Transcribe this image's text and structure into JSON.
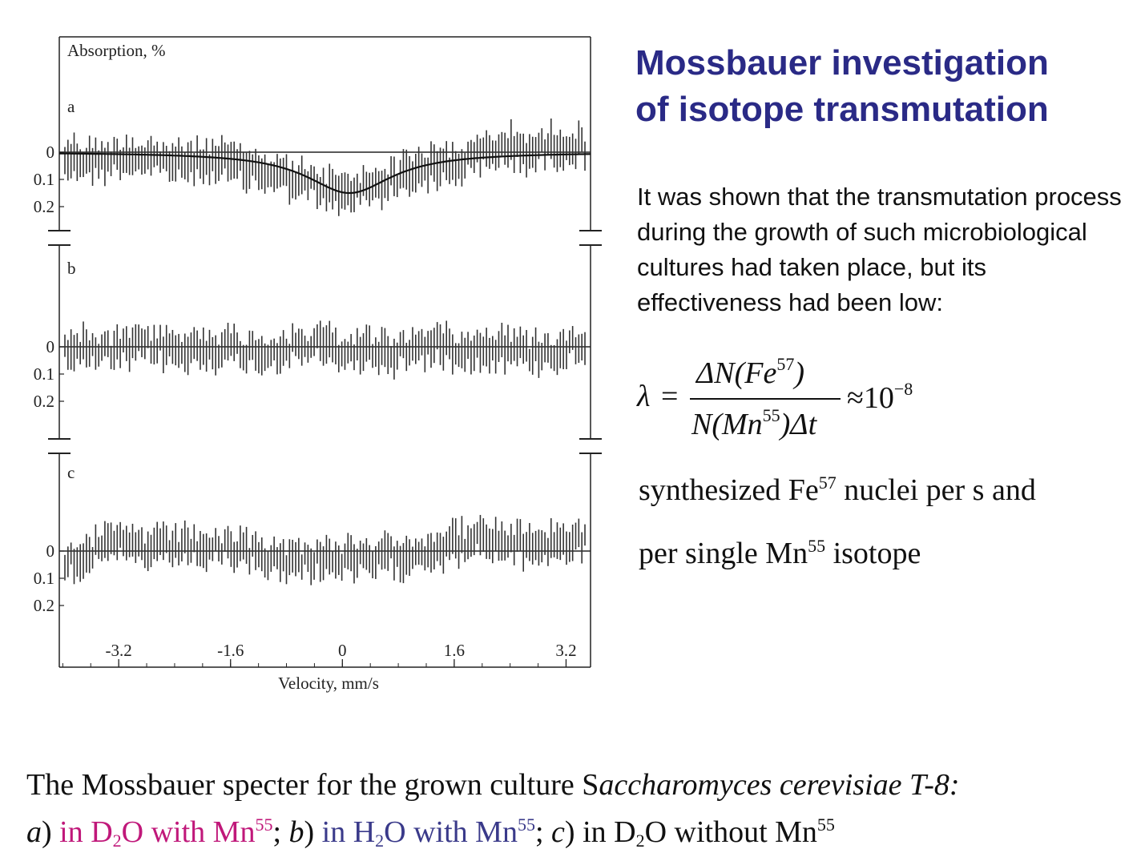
{
  "slide": {
    "title_line1": "Mossbauer investigation",
    "title_line2": "of isotope transmutation",
    "paragraph": "It  was shown that the transmutation process during the growth of such microbiological cultures had taken place, but its effectiveness had been low:",
    "formula": {
      "lambda": "λ",
      "equals": "=",
      "num_pre": "ΔN(Fe",
      "num_sup": "57",
      "num_post": ")",
      "den_pre": "N(Mn",
      "den_sup": "55",
      "den_post": ")Δt",
      "approx": "≈10",
      "approx_sup": "−8"
    },
    "desc_line1_pre": "synthesized Fe",
    "desc_line1_sup": "57",
    "desc_line1_post": " nuclei per s and",
    "desc_line2_pre": "per single Mn",
    "desc_line2_sup": "55",
    "desc_line2_post": " isotope",
    "caption": {
      "line1_pre": "The Mossbauer specter for the grown culture S",
      "line1_ital": "accharomyces cerevisiae T-8:",
      "a_letter": "a",
      "a_paren": ") ",
      "a_text_pre": "in D",
      "a_sub": "2",
      "a_text_mid": "O with Mn",
      "a_sup": "55",
      "a_sep": "; ",
      "b_letter": "b",
      "b_paren": ") ",
      "b_text_pre": "in H",
      "b_sub": "2",
      "b_text_mid": "O with Mn",
      "b_sup": "55",
      "b_sep": "; ",
      "c_letter": "c",
      "c_paren": ") ",
      "c_text_pre": "in D",
      "c_sub": "2",
      "c_text_mid": "O without Mn",
      "c_sup": "55"
    },
    "colors": {
      "title": "#2a2a86",
      "magenta": "#c0187a",
      "navy": "#3a3a8a"
    }
  },
  "chart_data": {
    "type": "line",
    "ylabel": "Absorption, %",
    "xlabel": "Velocity, mm/s",
    "xlim": [
      -4.05,
      3.55
    ],
    "x_ticks": [
      -3.2,
      -1.6,
      0,
      1.6,
      3.2
    ],
    "x_tick_labels": [
      "-3.2",
      "-1.6",
      "0",
      "1.6",
      "3.2"
    ],
    "y_ticks": [
      0,
      0.1,
      0.2
    ],
    "y_tick_labels": [
      "0",
      "0.1",
      "0.2"
    ],
    "y_inverted": true,
    "panels": [
      {
        "label": "a",
        "ylim": [
          -0.16,
          0.3
        ],
        "fit": {
          "shape": "lorentzian",
          "center": 0.1,
          "depth": 0.15,
          "hwhm": 0.75
        },
        "x": [
          -3.9,
          -3.5,
          -3.1,
          -2.7,
          -2.3,
          -1.9,
          -1.5,
          -1.1,
          -0.7,
          -0.3,
          0.0,
          0.3,
          0.7,
          1.1,
          1.5,
          1.9,
          2.3,
          2.7,
          3.1,
          3.4
        ],
        "y": [
          0.02,
          0.03,
          0.01,
          0.02,
          0.04,
          0.03,
          0.05,
          0.07,
          0.1,
          0.13,
          0.16,
          0.13,
          0.1,
          0.06,
          0.05,
          0.02,
          -0.02,
          0.0,
          -0.03,
          -0.02
        ],
        "error": 0.06
      },
      {
        "label": "b",
        "ylim": [
          -0.16,
          0.3
        ],
        "fit": {
          "shape": "flat",
          "value": 0
        },
        "x": [
          -3.9,
          -3.5,
          -3.1,
          -2.7,
          -2.3,
          -1.9,
          -1.5,
          -1.1,
          -0.7,
          -0.3,
          0.0,
          0.3,
          0.7,
          1.1,
          1.5,
          1.9,
          2.3,
          2.7,
          3.1,
          3.4
        ],
        "y": [
          0.0,
          0.02,
          0.01,
          -0.01,
          0.02,
          0.0,
          0.01,
          0.02,
          0.0,
          -0.01,
          0.02,
          0.01,
          0.02,
          0.0,
          -0.01,
          0.01,
          0.0,
          0.02,
          0.01,
          -0.01
        ],
        "error": 0.06
      },
      {
        "label": "c",
        "ylim": [
          -0.16,
          0.3
        ],
        "fit": {
          "shape": "flat",
          "value": 0
        },
        "x": [
          -3.9,
          -3.5,
          -3.1,
          -2.7,
          -2.3,
          -1.9,
          -1.5,
          -1.1,
          -0.7,
          -0.3,
          0.0,
          0.3,
          0.7,
          1.1,
          1.5,
          1.9,
          2.3,
          2.7,
          3.1,
          3.4
        ],
        "y": [
          0.03,
          -0.01,
          -0.03,
          0.0,
          -0.02,
          -0.01,
          0.0,
          0.02,
          0.04,
          0.02,
          0.03,
          0.04,
          0.02,
          0.0,
          -0.02,
          -0.04,
          -0.03,
          -0.02,
          -0.03,
          -0.04
        ],
        "error": 0.06
      }
    ]
  }
}
